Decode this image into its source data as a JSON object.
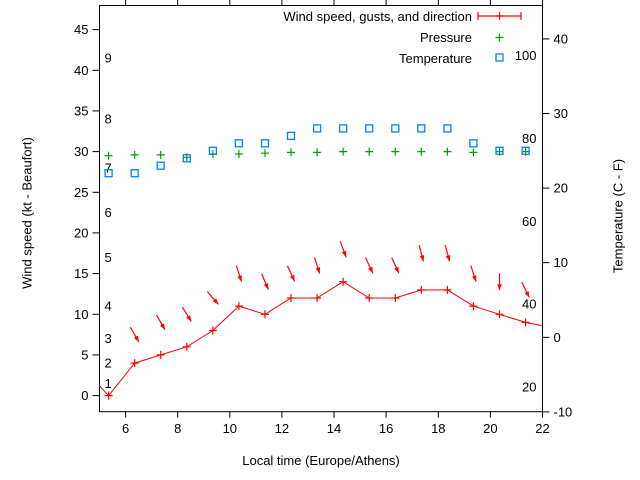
{
  "axes": {
    "xlabel": "Local time (Europe/Athens)",
    "ylabel_left": "Wind speed (kt - Beaufort)",
    "ylabel_right": "Temperature (C - F)"
  },
  "legend": {
    "wind": "Wind speed, gusts, and direction",
    "pressure": "Pressure",
    "temperature": "Temperature"
  },
  "colors": {
    "wind": "#ff0000",
    "pressure": "#00a000",
    "temperature": "#0080ff",
    "axis": "#000000",
    "background": "#ffffff"
  },
  "chart_data": {
    "type": "line",
    "title": "",
    "xlabel": "Local time (Europe/Athens)",
    "ylabel_left": "Wind speed (kt - Beaufort)",
    "ylabel_right": "Temperature (C - F)",
    "xlim": [
      5,
      22
    ],
    "ylim_left_kt": [
      -2,
      48
    ],
    "ylim_right_c": [
      -10,
      44.5
    ],
    "x_ticks": [
      6,
      8,
      10,
      12,
      14,
      16,
      18,
      20,
      22
    ],
    "y_left_ticks": [
      0,
      5,
      10,
      15,
      20,
      25,
      30,
      35,
      40,
      45
    ],
    "y_right_ticks": [
      -10,
      0,
      10,
      20,
      30,
      40
    ],
    "beaufort_scale_labels": [
      {
        "label": "1",
        "kt": 1.5
      },
      {
        "label": "2",
        "kt": 4
      },
      {
        "label": "3",
        "kt": 7
      },
      {
        "label": "4",
        "kt": 11
      },
      {
        "label": "5",
        "kt": 17
      },
      {
        "label": "6",
        "kt": 22.5
      },
      {
        "label": "7",
        "kt": 28
      },
      {
        "label": "8",
        "kt": 34
      },
      {
        "label": "9",
        "kt": 41.5
      }
    ],
    "fahrenheit_scale_labels": [
      {
        "label": "20",
        "f": 20
      },
      {
        "label": "40",
        "f": 40
      },
      {
        "label": "60",
        "f": 60
      },
      {
        "label": "80",
        "f": 80
      },
      {
        "label": "100",
        "f": 100
      }
    ],
    "x_hours": [
      5.35,
      6.35,
      7.35,
      8.35,
      9.35,
      10.35,
      11.35,
      12.35,
      13.35,
      14.35,
      15.35,
      16.35,
      17.35,
      18.35,
      19.35,
      20.35,
      21.35
    ],
    "series": [
      {
        "name": "Wind speed, gusts, and direction",
        "type": "line_with_cross_markers",
        "axis": "left",
        "color": "#ff0000",
        "values_kt": [
          0,
          4,
          5,
          6,
          8,
          11,
          10,
          12,
          12,
          14,
          12,
          12,
          13,
          13,
          11,
          10,
          9
        ],
        "edge_start_hour_kt": [
          5.0,
          1.2
        ],
        "edge_end_hour_kt": [
          22.0,
          8.6
        ]
      },
      {
        "name": "Wind gusts with direction arrows",
        "type": "direction_arrows",
        "axis": "left",
        "color": "#ff0000",
        "x_hours": [
          6.35,
          7.35,
          8.35,
          9.35,
          10.35,
          11.35,
          12.35,
          13.35,
          14.35,
          15.35,
          16.35,
          17.35,
          18.35,
          19.35,
          20.35,
          21.35
        ],
        "gust_kt": [
          7.5,
          9,
          10,
          12,
          15,
          14,
          15,
          16,
          18,
          16,
          16,
          17.5,
          17.5,
          15,
          14,
          13
        ],
        "arrow_angle_deg_from_straight_down": [
          30,
          30,
          32,
          41,
          18,
          23,
          25,
          18,
          20,
          25,
          25,
          15,
          15,
          18,
          0,
          26
        ]
      },
      {
        "name": "Pressure",
        "type": "cross_markers",
        "axis": "left",
        "color": "#00a000",
        "values_left_axis_units": [
          29.5,
          29.6,
          29.6,
          29.3,
          29.7,
          29.7,
          29.8,
          29.9,
          29.9,
          30.0,
          30.0,
          30.0,
          30.0,
          30.0,
          29.9,
          30.0,
          30.0
        ]
      },
      {
        "name": "Temperature",
        "type": "square_markers",
        "axis": "right",
        "color": "#0080ff",
        "values_c": [
          22,
          22,
          23,
          24,
          25,
          26,
          26,
          27,
          28,
          28,
          28,
          28,
          28,
          28,
          26,
          25,
          25
        ]
      }
    ],
    "legend": {
      "position": "top-right-inside",
      "entries": [
        "Wind speed, gusts, and direction",
        "Pressure",
        "Temperature"
      ]
    },
    "grid": false
  }
}
